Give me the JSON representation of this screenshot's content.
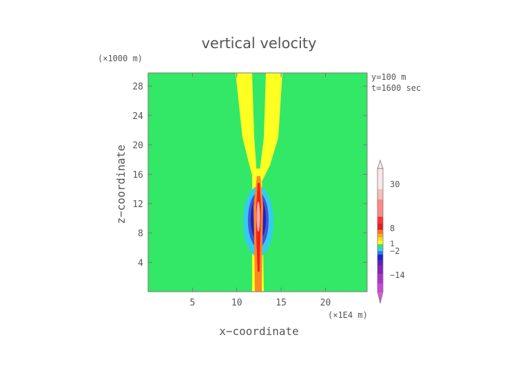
{
  "chart_data": {
    "type": "heatmap",
    "title": "vertical velocity",
    "xlabel": "x−coordinate",
    "ylabel": "z−coordinate",
    "x_unit": "(×1E4 m)",
    "y_unit": "(×1000 m)",
    "xlim": [
      0,
      24.7
    ],
    "ylim": [
      0,
      29.8
    ],
    "x_ticks": [
      5,
      10,
      15,
      20
    ],
    "y_ticks": [
      4,
      8,
      12,
      16,
      20,
      24,
      28
    ],
    "annotations": [
      "y=100 m",
      "t=1600 sec"
    ],
    "colorbar_labels": [
      "30",
      "8",
      "1",
      "−2",
      "−14"
    ],
    "colorbar_label_values": [
      30,
      8,
      1,
      -2,
      -14
    ],
    "grid": false,
    "regions": [
      {
        "name": "background",
        "color": "#33e866",
        "level": "~0"
      },
      {
        "name": "upper-left-plume",
        "color": "#ffff22",
        "level": "positive"
      },
      {
        "name": "upper-right-plume",
        "color": "#ffff22",
        "level": "positive"
      },
      {
        "name": "downdraft-outer",
        "color": "#33ccee",
        "level": "negative"
      },
      {
        "name": "downdraft-core",
        "color": "#2222cc",
        "level": "strong negative"
      },
      {
        "name": "updraft-core",
        "color": "#ee2222",
        "level": "strong positive"
      }
    ]
  }
}
